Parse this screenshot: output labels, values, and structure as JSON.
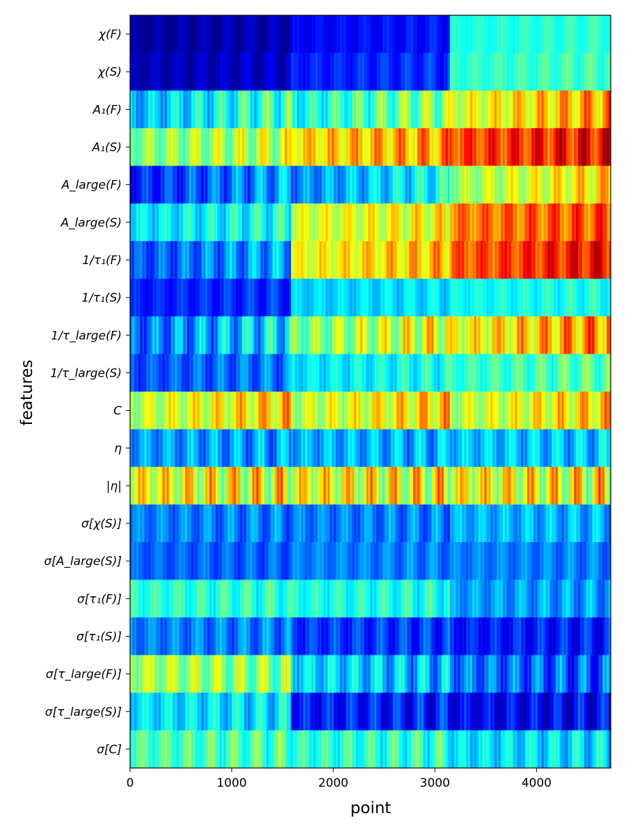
{
  "chart_data": {
    "type": "heatmap",
    "title": "",
    "xlabel": "point",
    "ylabel": "features",
    "colormap": "jet",
    "xlim": [
      0,
      4730
    ],
    "x_ticks": [
      0,
      1000,
      2000,
      3000,
      4000
    ],
    "x_tick_labels": [
      "0",
      "1000",
      "2000",
      "3000",
      "4000"
    ],
    "segments": [
      {
        "start": 0,
        "end": 1580
      },
      {
        "start": 1580,
        "end": 3150
      },
      {
        "start": 3150,
        "end": 4730
      }
    ],
    "rows": [
      {
        "label": "χ(F)",
        "levels": [
          0.03,
          0.12,
          0.4
        ],
        "modulation": 0.04,
        "grow": 0.1
      },
      {
        "label": "χ(S)",
        "levels": [
          0.05,
          0.15,
          0.42
        ],
        "modulation": 0.05,
        "grow": 0.1
      },
      {
        "label": "A₁(F)",
        "levels": [
          0.3,
          0.38,
          0.58
        ],
        "modulation": 0.12,
        "grow": 0.6
      },
      {
        "label": "A₁(S)",
        "levels": [
          0.5,
          0.65,
          0.8
        ],
        "modulation": 0.12,
        "grow": 0.3
      },
      {
        "label": "A_large(F)",
        "levels": [
          0.15,
          0.25,
          0.52
        ],
        "modulation": 0.1,
        "grow": 0.6
      },
      {
        "label": "A_large(S)",
        "levels": [
          0.35,
          0.58,
          0.75
        ],
        "modulation": 0.1,
        "grow": 0.2
      },
      {
        "label": "1/τ₁(F)",
        "levels": [
          0.2,
          0.6,
          0.78
        ],
        "modulation": 0.1,
        "grow": 0.4
      },
      {
        "label": "1/τ₁(S)",
        "levels": [
          0.15,
          0.33,
          0.38
        ],
        "modulation": 0.06,
        "grow": 0.1
      },
      {
        "label": "1/τ_large(F)",
        "levels": [
          0.22,
          0.48,
          0.6
        ],
        "modulation": 0.14,
        "grow": 0.6
      },
      {
        "label": "1/τ_large(S)",
        "levels": [
          0.2,
          0.35,
          0.42
        ],
        "modulation": 0.08,
        "grow": 0.2
      },
      {
        "label": "C",
        "levels": [
          0.55,
          0.55,
          0.55
        ],
        "modulation": 0.12,
        "grow": 0.5
      },
      {
        "label": "η",
        "levels": [
          0.28,
          0.3,
          0.32
        ],
        "modulation": 0.1,
        "grow": 0.0
      },
      {
        "label": "|η|",
        "levels": [
          0.62,
          0.62,
          0.62
        ],
        "modulation": 0.18,
        "grow": 0.0
      },
      {
        "label": "σ[χ(S)]",
        "levels": [
          0.25,
          0.25,
          0.3
        ],
        "modulation": 0.08,
        "grow": 0.0
      },
      {
        "label": "σ[A_large(S)]",
        "levels": [
          0.22,
          0.25,
          0.25
        ],
        "modulation": 0.06,
        "grow": 0.0
      },
      {
        "label": "σ[τ₁(F)]",
        "levels": [
          0.42,
          0.4,
          0.28
        ],
        "modulation": 0.08,
        "grow": 0.0
      },
      {
        "label": "σ[τ₁(S)]",
        "levels": [
          0.25,
          0.18,
          0.15
        ],
        "modulation": 0.08,
        "grow": 0.0
      },
      {
        "label": "σ[τ_large(F)]",
        "levels": [
          0.55,
          0.35,
          0.25
        ],
        "modulation": 0.12,
        "grow": -0.2
      },
      {
        "label": "σ[τ_large(S)]",
        "levels": [
          0.35,
          0.15,
          0.12
        ],
        "modulation": 0.1,
        "grow": 0.0
      },
      {
        "label": "σ[C]",
        "levels": [
          0.45,
          0.42,
          0.35
        ],
        "modulation": 0.1,
        "grow": 0.0
      }
    ]
  }
}
